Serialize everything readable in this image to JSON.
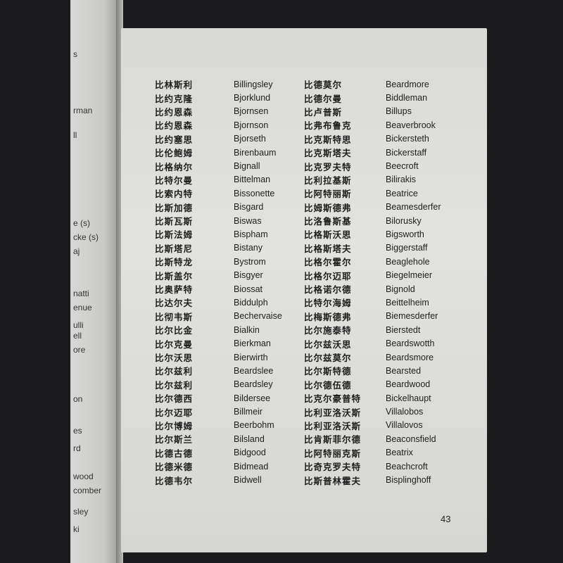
{
  "left_page_fragments": [
    "s",
    "rman",
    "ll",
    "e (s)",
    "cke (s)",
    "aj",
    "natti",
    "enue",
    "ulli",
    "ell",
    "ore",
    "on",
    "es",
    "rd",
    "wood",
    "comber",
    "sley",
    "ki"
  ],
  "entries": [
    [
      "比林斯利",
      "Billingsley",
      "比德莫尔",
      "Beardmore"
    ],
    [
      "比约克隆",
      "Bjorklund",
      "比德尔曼",
      "Biddleman"
    ],
    [
      "比约恩森",
      "Bjornsen",
      "比卢普斯",
      "Billups"
    ],
    [
      "比约恩森",
      "Bjornson",
      "比弗布鲁克",
      "Beaverbrook"
    ],
    [
      "比约塞思",
      "Bjorseth",
      "比克斯特思",
      "Bickersteth"
    ],
    [
      "比伦鲍姆",
      "Birenbaum",
      "比克斯塔夫",
      "Bickerstaff"
    ],
    [
      "比格纳尔",
      "Bignall",
      "比克罗夫特",
      "Beecroft"
    ],
    [
      "比特尔曼",
      "Bittelman",
      "比利拉基斯",
      "Bilirakis"
    ],
    [
      "比索内特",
      "Bissonette",
      "比阿特丽斯",
      "Beatrice"
    ],
    [
      "比斯加德",
      "Bisgard",
      "比姆斯德弗",
      "Beamesderfer"
    ],
    [
      "比斯瓦斯",
      "Biswas",
      "比洛鲁斯基",
      "Bilorusky"
    ],
    [
      "比斯法姆",
      "Bispham",
      "比格斯沃思",
      "Bigsworth"
    ],
    [
      "比斯塔尼",
      "Bistany",
      "比格斯塔夫",
      "Biggerstaff"
    ],
    [
      "比斯特龙",
      "Bystrom",
      "比格尔霍尔",
      "Beaglehole"
    ],
    [
      "比斯盖尔",
      "Bisgyer",
      "比格尔迈耶",
      "Biegelmeier"
    ],
    [
      "比奥萨特",
      "Biossat",
      "比格诺尔德",
      "Bignold"
    ],
    [
      "比达尔夫",
      "Biddulph",
      "比特尔海姆",
      "Beittelheim"
    ],
    [
      "比彻韦斯",
      "Bechervaise",
      "比梅斯德弗",
      "Biemesderfer"
    ],
    [
      "比尔比金",
      "Bialkin",
      "比尔施泰特",
      "Bierstedt"
    ],
    [
      "比尔克曼",
      "Bierkman",
      "比尔兹沃思",
      "Beardswotth"
    ],
    [
      "比尔沃思",
      "Bierwirth",
      "比尔兹莫尔",
      "Beardsmore"
    ],
    [
      "比尔兹利",
      "Beardslee",
      "比尔斯特德",
      "Bearsted"
    ],
    [
      "比尔兹利",
      "Beardsley",
      "比尔德伍德",
      "Beardwood"
    ],
    [
      "比尔德西",
      "Bildersee",
      "比克尔豪普特",
      "Bickelhaupt"
    ],
    [
      "比尔迈耶",
      "Billmeir",
      "比利亚洛沃斯",
      "Villalobos"
    ],
    [
      "比尔博姆",
      "Beerbohm",
      "比利亚洛沃斯",
      "Villalovos"
    ],
    [
      "比尔斯兰",
      "Bilsland",
      "比肯斯菲尔德",
      "Beaconsfield"
    ],
    [
      "比德古德",
      "Bidgood",
      "比阿特丽克斯",
      "Beatrix"
    ],
    [
      "比德米德",
      "Bidmead",
      "比奇克罗夫特",
      "Beachcroft"
    ],
    [
      "比德韦尔",
      "Bidwell",
      "比斯普林霍夫",
      "Bisplinghoff"
    ]
  ],
  "page_number": "43"
}
